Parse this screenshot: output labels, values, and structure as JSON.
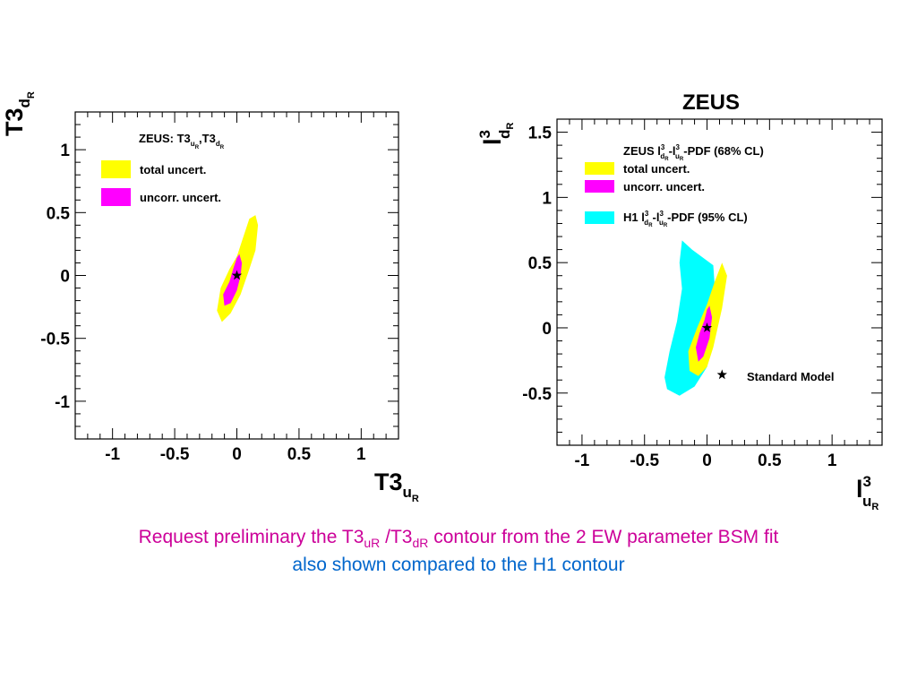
{
  "chart_data": [
    {
      "type": "contour",
      "xlabel": "T3",
      "xlabel_sub": "u",
      "xlabel_subsub": "R",
      "ylabel": "T3",
      "ylabel_sub": "d",
      "ylabel_subsub": "R",
      "xlim": [
        -1.3,
        1.3
      ],
      "ylim": [
        -1.3,
        1.3
      ],
      "x_ticks": [
        -1,
        -0.5,
        0,
        0.5,
        1
      ],
      "x_tick_labels": [
        "-1",
        "-0.5",
        "0",
        "0.5",
        "1"
      ],
      "y_ticks": [
        -1,
        -0.5,
        0,
        0.5,
        1
      ],
      "y_tick_labels": [
        "-1",
        "-0.5",
        "0",
        "0.5",
        "1"
      ],
      "grid": false,
      "legend": {
        "header": "ZEUS: T3",
        "header_sub1": "u",
        "header_subsub1": "R",
        "header_mid": ",T3",
        "header_sub2": "d",
        "header_subsub2": "R",
        "items": [
          {
            "label": "total uncert.",
            "color": "#ffff00"
          },
          {
            "label": "uncorr. uncert.",
            "color": "#ff00ff"
          }
        ]
      },
      "series": [
        {
          "name": "total uncert.",
          "color": "#ffff00",
          "points": [
            [
              0.15,
              0.48
            ],
            [
              0.17,
              0.4
            ],
            [
              0.15,
              0.2
            ],
            [
              0.1,
              0.05
            ],
            [
              0.03,
              -0.15
            ],
            [
              -0.05,
              -0.3
            ],
            [
              -0.12,
              -0.37
            ],
            [
              -0.16,
              -0.28
            ],
            [
              -0.13,
              -0.1
            ],
            [
              -0.06,
              0.05
            ],
            [
              0,
              0.15
            ],
            [
              0.05,
              0.3
            ],
            [
              0.1,
              0.45
            ]
          ]
        },
        {
          "name": "uncorr. uncert.",
          "color": "#ff00ff",
          "points": [
            [
              0.02,
              0.17
            ],
            [
              0.04,
              0.1
            ],
            [
              0.03,
              0
            ],
            [
              0,
              -0.12
            ],
            [
              -0.05,
              -0.22
            ],
            [
              -0.1,
              -0.24
            ],
            [
              -0.11,
              -0.15
            ],
            [
              -0.06,
              -0.05
            ],
            [
              -0.03,
              0.05
            ],
            [
              0,
              0.14
            ]
          ]
        }
      ],
      "markers": [
        {
          "x": 0,
          "y": 0,
          "symbol": "star"
        }
      ]
    },
    {
      "type": "contour",
      "title": "ZEUS",
      "xlabel": "l",
      "xlabel_sup": "3",
      "xlabel_sub": "u",
      "xlabel_subsub": "R",
      "ylabel": "l",
      "ylabel_sup": "3",
      "ylabel_sub": "d",
      "ylabel_subsub": "R",
      "xlim": [
        -1.2,
        1.4
      ],
      "ylim": [
        -0.9,
        1.6
      ],
      "x_ticks": [
        -1,
        -0.5,
        0,
        0.5,
        1
      ],
      "x_tick_labels": [
        "-1",
        "-0.5",
        "0",
        "0.5",
        "1"
      ],
      "y_ticks": [
        -0.5,
        0,
        0.5,
        1,
        1.5
      ],
      "y_tick_labels": [
        "-0.5",
        "0",
        "0.5",
        "1",
        "1.5"
      ],
      "grid": false,
      "legend": {
        "header_pre": "ZEUS l",
        "header_mid": "-l",
        "header_post": "-PDF (68% CL)",
        "sup": "3",
        "sub1": "d",
        "sub2": "u",
        "subsub": "R",
        "items": [
          {
            "label": "total uncert.",
            "color": "#ffff00"
          },
          {
            "label": "uncorr. uncert.",
            "color": "#ff00ff"
          }
        ],
        "h1_pre": "H1 l",
        "h1_mid": "-l",
        "h1_post": "-PDF (95% CL)",
        "h1_color": "#00ffff",
        "sm_label": "Standard Model"
      },
      "series": [
        {
          "name": "H1 l3dR-l3uR-PDF (95% CL)",
          "color": "#00ffff",
          "points": [
            [
              -0.2,
              0.67
            ],
            [
              -0.12,
              0.6
            ],
            [
              0.05,
              0.48
            ],
            [
              0.07,
              0.2
            ],
            [
              0.05,
              -0.1
            ],
            [
              0,
              -0.3
            ],
            [
              -0.1,
              -0.45
            ],
            [
              -0.22,
              -0.52
            ],
            [
              -0.32,
              -0.47
            ],
            [
              -0.34,
              -0.38
            ],
            [
              -0.3,
              -0.18
            ],
            [
              -0.24,
              0.05
            ],
            [
              -0.2,
              0.3
            ],
            [
              -0.22,
              0.5
            ]
          ]
        },
        {
          "name": "total uncert.",
          "color": "#ffff00",
          "points": [
            [
              0.12,
              0.5
            ],
            [
              0.16,
              0.4
            ],
            [
              0.12,
              0.15
            ],
            [
              0.05,
              -0.15
            ],
            [
              0,
              -0.3
            ],
            [
              -0.07,
              -0.37
            ],
            [
              -0.14,
              -0.33
            ],
            [
              -0.15,
              -0.18
            ],
            [
              -0.08,
              0
            ],
            [
              0,
              0.18
            ],
            [
              0.06,
              0.35
            ]
          ]
        },
        {
          "name": "uncorr. uncert.",
          "color": "#ff00ff",
          "points": [
            [
              0.02,
              0.17
            ],
            [
              0.04,
              0.08
            ],
            [
              0.02,
              -0.08
            ],
            [
              -0.03,
              -0.22
            ],
            [
              -0.07,
              -0.26
            ],
            [
              -0.09,
              -0.15
            ],
            [
              -0.06,
              -0.04
            ],
            [
              -0.02,
              0.06
            ],
            [
              0,
              0.14
            ]
          ]
        }
      ],
      "markers": [
        {
          "x": 0,
          "y": 0,
          "symbol": "star"
        },
        {
          "x": 0.12,
          "y": -0.36,
          "symbol": "star"
        }
      ]
    }
  ],
  "caption": {
    "line1_a": "Request preliminary the  T3",
    "line1_sub1": "uR",
    "line1_b": " /T3",
    "line1_sub2": "dR",
    "line1_c": " contour from the 2 EW parameter  BSM fit",
    "line2": "also shown compared to the H1 contour",
    "line1_color": "#cc0099",
    "line2_color": "#0066cc"
  }
}
